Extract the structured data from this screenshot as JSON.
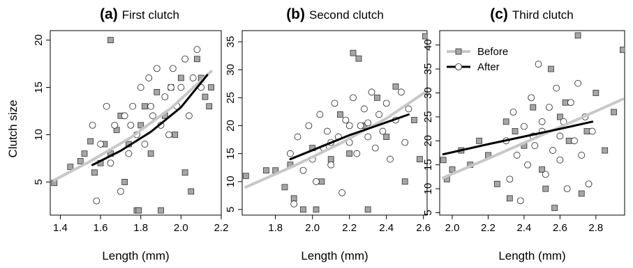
{
  "figure": {
    "ylabel": "Clutch size"
  },
  "legend": {
    "before_label": "Before",
    "after_label": "After",
    "before_color": "#c8c8c8",
    "after_color": "#000000",
    "square_fill": "#a6a6a6"
  },
  "chart_data": [
    {
      "type": "scatter",
      "panel_letter": "(a)",
      "title": "First clutch",
      "xlabel": "Length (mm)",
      "ylabel": "Clutch size",
      "xlim": [
        1.35,
        2.2
      ],
      "ylim": [
        1.5,
        21
      ],
      "xticks": [
        1.4,
        1.6,
        1.8,
        2.0,
        2.2
      ],
      "xtick_labels": [
        "1.4",
        "1.6",
        "1.8",
        "2.0",
        "2.2"
      ],
      "yticks": [
        5,
        10,
        15,
        20
      ],
      "ytick_labels": [
        "5",
        "10",
        "15",
        "20"
      ],
      "grid": false,
      "series": [
        {
          "name": "Before",
          "marker": "square",
          "points": [
            [
              1.37,
              4.9
            ],
            [
              1.45,
              6.6
            ],
            [
              1.5,
              7.2
            ],
            [
              1.52,
              8.0
            ],
            [
              1.55,
              9.3
            ],
            [
              1.57,
              6.0
            ],
            [
              1.6,
              7.0
            ],
            [
              1.62,
              9.0
            ],
            [
              1.65,
              20.0
            ],
            [
              1.65,
              8.0
            ],
            [
              1.68,
              10.5
            ],
            [
              1.7,
              12.0
            ],
            [
              1.72,
              5.0
            ],
            [
              1.74,
              9.0
            ],
            [
              1.78,
              2.0
            ],
            [
              1.79,
              2.0
            ],
            [
              1.8,
              11.0
            ],
            [
              1.82,
              13.0
            ],
            [
              1.85,
              8.0
            ],
            [
              1.88,
              14.5
            ],
            [
              1.9,
              2.0
            ],
            [
              1.92,
              12.0
            ],
            [
              1.95,
              15.0
            ],
            [
              1.97,
              10.0
            ],
            [
              2.0,
              16.0
            ],
            [
              2.02,
              6.0
            ],
            [
              2.05,
              4.0
            ],
            [
              2.08,
              18.0
            ],
            [
              2.1,
              16.0
            ],
            [
              2.12,
              14.0
            ],
            [
              2.14,
              13.0
            ],
            [
              2.15,
              15.0
            ]
          ],
          "fit": [
            [
              1.37,
              5.2
            ],
            [
              1.55,
              7.2
            ],
            [
              1.75,
              9.7
            ],
            [
              1.95,
              12.8
            ],
            [
              2.15,
              16.7
            ]
          ]
        },
        {
          "name": "After",
          "marker": "circle",
          "points": [
            [
              1.56,
              11.0
            ],
            [
              1.58,
              3.0
            ],
            [
              1.6,
              9.0
            ],
            [
              1.63,
              13.0
            ],
            [
              1.65,
              7.0
            ],
            [
              1.67,
              11.0
            ],
            [
              1.7,
              4.0
            ],
            [
              1.72,
              12.0
            ],
            [
              1.74,
              8.0
            ],
            [
              1.76,
              13.0
            ],
            [
              1.78,
              10.0
            ],
            [
              1.8,
              15.0
            ],
            [
              1.82,
              9.0
            ],
            [
              1.84,
              16.0
            ],
            [
              1.86,
              12.0
            ],
            [
              1.88,
              17.0
            ],
            [
              1.9,
              11.0
            ],
            [
              1.92,
              14.0
            ],
            [
              1.94,
              10.0
            ],
            [
              1.96,
              17.0
            ],
            [
              1.98,
              13.0
            ],
            [
              2.0,
              15.0
            ],
            [
              2.02,
              18.0
            ],
            [
              2.04,
              12.0
            ],
            [
              2.06,
              16.0
            ],
            [
              2.08,
              19.0
            ],
            [
              2.1,
              15.0
            ],
            [
              1.75,
              11.0
            ],
            [
              1.85,
              13.0
            ],
            [
              1.95,
              15.0
            ]
          ],
          "fit": [
            [
              1.56,
              6.8
            ],
            [
              1.7,
              8.3
            ],
            [
              1.85,
              10.3
            ],
            [
              2.0,
              12.9
            ],
            [
              2.13,
              16.3
            ]
          ]
        }
      ]
    },
    {
      "type": "scatter",
      "panel_letter": "(b)",
      "title": "Second clutch",
      "xlabel": "Length (mm)",
      "ylabel": "",
      "xlim": [
        1.62,
        2.62
      ],
      "ylim": [
        4,
        37
      ],
      "xticks": [
        1.8,
        2.0,
        2.2,
        2.4,
        2.6
      ],
      "xtick_labels": [
        "1.8",
        "2.0",
        "2.2",
        "2.4",
        "2.6"
      ],
      "yticks": [
        5,
        10,
        15,
        20,
        25,
        30,
        35
      ],
      "ytick_labels": [
        "5",
        "10",
        "15",
        "20",
        "25",
        "30",
        "35"
      ],
      "grid": false,
      "series": [
        {
          "name": "Before",
          "marker": "square",
          "points": [
            [
              1.64,
              11.0
            ],
            [
              1.75,
              12.0
            ],
            [
              1.8,
              12.0
            ],
            [
              1.85,
              9.0
            ],
            [
              1.88,
              13.0
            ],
            [
              1.9,
              7.0
            ],
            [
              1.95,
              5.0
            ],
            [
              2.0,
              16.0
            ],
            [
              2.02,
              5.0
            ],
            [
              2.05,
              10.0
            ],
            [
              2.1,
              14.0
            ],
            [
              2.15,
              22.0
            ],
            [
              2.2,
              15.0
            ],
            [
              2.22,
              33.0
            ],
            [
              2.25,
              32.0
            ],
            [
              2.28,
              20.0
            ],
            [
              2.3,
              5.0
            ],
            [
              2.35,
              25.0
            ],
            [
              2.4,
              18.0
            ],
            [
              2.45,
              27.0
            ],
            [
              2.5,
              10.0
            ],
            [
              2.55,
              21.0
            ],
            [
              2.58,
              14.0
            ],
            [
              2.61,
              36.0
            ]
          ],
          "fit": [
            [
              1.64,
              9.0
            ],
            [
              1.9,
              12.8
            ],
            [
              2.15,
              16.8
            ],
            [
              2.4,
              21.3
            ],
            [
              2.61,
              26.0
            ]
          ]
        },
        {
          "name": "After",
          "marker": "circle",
          "points": [
            [
              1.88,
              15.0
            ],
            [
              1.9,
              6.0
            ],
            [
              1.92,
              18.0
            ],
            [
              1.95,
              12.0
            ],
            [
              1.98,
              20.0
            ],
            [
              2.0,
              14.0
            ],
            [
              2.02,
              10.0
            ],
            [
              2.04,
              22.0
            ],
            [
              2.06,
              16.0
            ],
            [
              2.08,
              19.0
            ],
            [
              2.1,
              13.0
            ],
            [
              2.12,
              24.0
            ],
            [
              2.14,
              18.0
            ],
            [
              2.16,
              8.0
            ],
            [
              2.18,
              21.0
            ],
            [
              2.2,
              17.0
            ],
            [
              2.22,
              25.0
            ],
            [
              2.24,
              15.0
            ],
            [
              2.26,
              20.0
            ],
            [
              2.28,
              23.0
            ],
            [
              2.3,
              18.0
            ],
            [
              2.32,
              26.0
            ],
            [
              2.34,
              16.0
            ],
            [
              2.36,
              22.0
            ],
            [
              2.38,
              19.0
            ],
            [
              2.4,
              24.0
            ],
            [
              2.42,
              14.0
            ],
            [
              2.45,
              21.0
            ],
            [
              2.48,
              26.0
            ],
            [
              2.5,
              17.0
            ],
            [
              2.52,
              23.0
            ],
            [
              2.2,
              20.0
            ],
            [
              2.1,
              17.0
            ],
            [
              2.3,
              20.5
            ]
          ],
          "fit": [
            [
              1.88,
              14.0
            ],
            [
              2.0,
              15.6
            ],
            [
              2.2,
              18.3
            ],
            [
              2.4,
              20.6
            ],
            [
              2.52,
              22.0
            ]
          ]
        }
      ]
    },
    {
      "type": "scatter",
      "panel_letter": "(c)",
      "title": "Third clutch",
      "xlabel": "Length (mm)",
      "ylabel": "",
      "xlim": [
        1.93,
        2.96
      ],
      "ylim": [
        4.5,
        43
      ],
      "xticks": [
        2.0,
        2.2,
        2.4,
        2.6,
        2.8
      ],
      "xtick_labels": [
        "2.0",
        "2.2",
        "2.4",
        "2.6",
        "2.8"
      ],
      "yticks": [
        5,
        10,
        15,
        20,
        25,
        30,
        35,
        40
      ],
      "ytick_labels": [
        "5",
        "10",
        "15",
        "20",
        "25",
        "30",
        "35",
        "40"
      ],
      "grid": false,
      "series": [
        {
          "name": "Before",
          "marker": "square",
          "points": [
            [
              1.95,
              16.0
            ],
            [
              1.97,
              12.0
            ],
            [
              2.0,
              14.0
            ],
            [
              2.05,
              18.0
            ],
            [
              2.1,
              15.0
            ],
            [
              2.15,
              20.0
            ],
            [
              2.2,
              17.0
            ],
            [
              2.25,
              11.0
            ],
            [
              2.3,
              24.0
            ],
            [
              2.32,
              8.0
            ],
            [
              2.35,
              22.0
            ],
            [
              2.4,
              19.0
            ],
            [
              2.45,
              27.0
            ],
            [
              2.5,
              14.0
            ],
            [
              2.52,
              10.0
            ],
            [
              2.55,
              35.0
            ],
            [
              2.57,
              6.0
            ],
            [
              2.6,
              25.0
            ],
            [
              2.63,
              28.0
            ],
            [
              2.65,
              20.0
            ],
            [
              2.7,
              42.0
            ],
            [
              2.72,
              9.0
            ],
            [
              2.75,
              22.0
            ],
            [
              2.8,
              30.0
            ],
            [
              2.85,
              18.0
            ],
            [
              2.9,
              26.0
            ],
            [
              2.95,
              39.0
            ]
          ],
          "fit": [
            [
              1.95,
              12.3
            ],
            [
              2.2,
              16.3
            ],
            [
              2.45,
              20.4
            ],
            [
              2.7,
              24.5
            ],
            [
              2.95,
              28.7
            ]
          ]
        },
        {
          "name": "After",
          "marker": "circle",
          "points": [
            [
              2.3,
              20.0
            ],
            [
              2.32,
              12.0
            ],
            [
              2.34,
              26.0
            ],
            [
              2.36,
              17.0
            ],
            [
              2.38,
              7.5
            ],
            [
              2.4,
              23.0
            ],
            [
              2.42,
              15.0
            ],
            [
              2.44,
              29.0
            ],
            [
              2.46,
              19.0
            ],
            [
              2.48,
              36.0
            ],
            [
              2.5,
              22.0
            ],
            [
              2.52,
              13.0
            ],
            [
              2.54,
              27.0
            ],
            [
              2.56,
              18.0
            ],
            [
              2.58,
              31.0
            ],
            [
              2.6,
              16.0
            ],
            [
              2.62,
              24.0
            ],
            [
              2.64,
              10.0
            ],
            [
              2.66,
              28.0
            ],
            [
              2.68,
              20.0
            ],
            [
              2.7,
              32.0
            ],
            [
              2.72,
              17.0
            ],
            [
              2.74,
              25.0
            ],
            [
              2.76,
              11.0
            ],
            [
              2.78,
              22.0
            ],
            [
              2.5,
              24.0
            ],
            [
              2.6,
              21.0
            ],
            [
              2.45,
              21.0
            ]
          ],
          "fit": [
            [
              1.95,
              17.2
            ],
            [
              2.2,
              19.3
            ],
            [
              2.45,
              21.3
            ],
            [
              2.6,
              22.5
            ],
            [
              2.78,
              24.0
            ]
          ]
        }
      ]
    }
  ]
}
